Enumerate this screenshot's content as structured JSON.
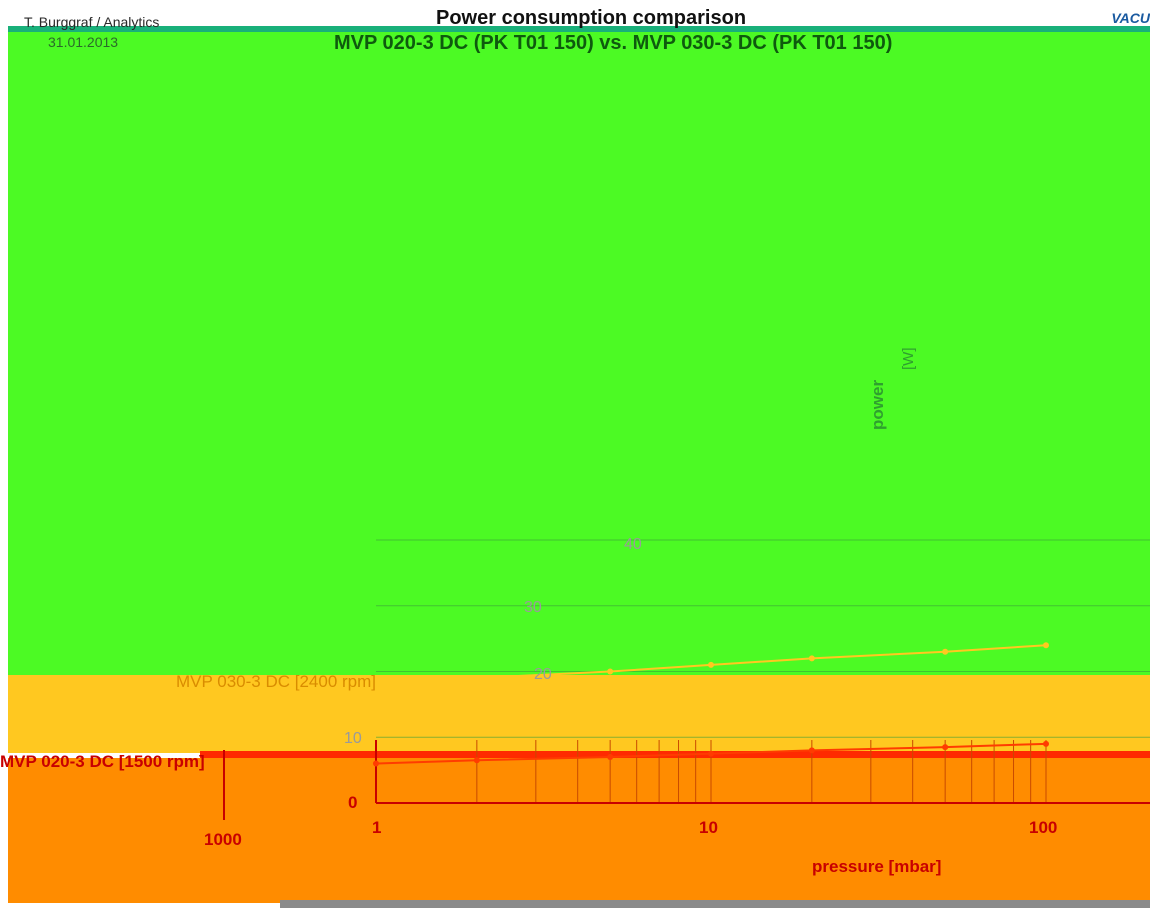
{
  "header": {
    "author": "T. Burggraf / Analytics",
    "date": "31.01.2013",
    "title_line1": "Power consumption comparison",
    "title_line2": "MVP 020-3 DC (PK T01 150) vs. MVP 030-3 DC (PK T01 150)",
    "logo_text": "VACU"
  },
  "chart_data": {
    "type": "line",
    "title": "Power consumption comparison",
    "subtitle": "MVP 020-3 DC (PK T01 150) vs. MVP 030-3 DC (PK T01 150)",
    "xlabel": "pressure  [mbar]",
    "ylabel": "power",
    "ylabel_unit": "[W]",
    "x_scale": "log",
    "xlim": [
      1,
      100
    ],
    "ylim": [
      0,
      40
    ],
    "x_ticks": [
      "1000",
      "1",
      "10",
      "100"
    ],
    "y_ticks": [
      "0",
      "10",
      "20",
      "30",
      "40"
    ],
    "legend": [
      "MVP 030-3 DC [2400 rpm]",
      "MVP 020-3 DC [1500 rpm]"
    ],
    "series": [
      {
        "name": "MVP 030-3 DC [2400 rpm]",
        "color": "#ffc820",
        "x": [
          1,
          2,
          5,
          10,
          20,
          50,
          100
        ],
        "y": [
          18,
          19,
          20,
          21,
          22,
          23,
          24
        ]
      },
      {
        "name": "MVP 020-3 DC [1500 rpm]",
        "color": "#ff3c00",
        "x": [
          1,
          2,
          5,
          10,
          20,
          50,
          100
        ],
        "y": [
          6,
          6.5,
          7,
          7.5,
          8,
          8.5,
          9
        ]
      }
    ]
  },
  "colors": {
    "plot_background": "#4cfa24",
    "band_yellow": "#ffc820",
    "band_orange": "#ff8c00",
    "band_red": "#ff2a00",
    "axis": "#c80000",
    "grid": "#3aa03a"
  }
}
